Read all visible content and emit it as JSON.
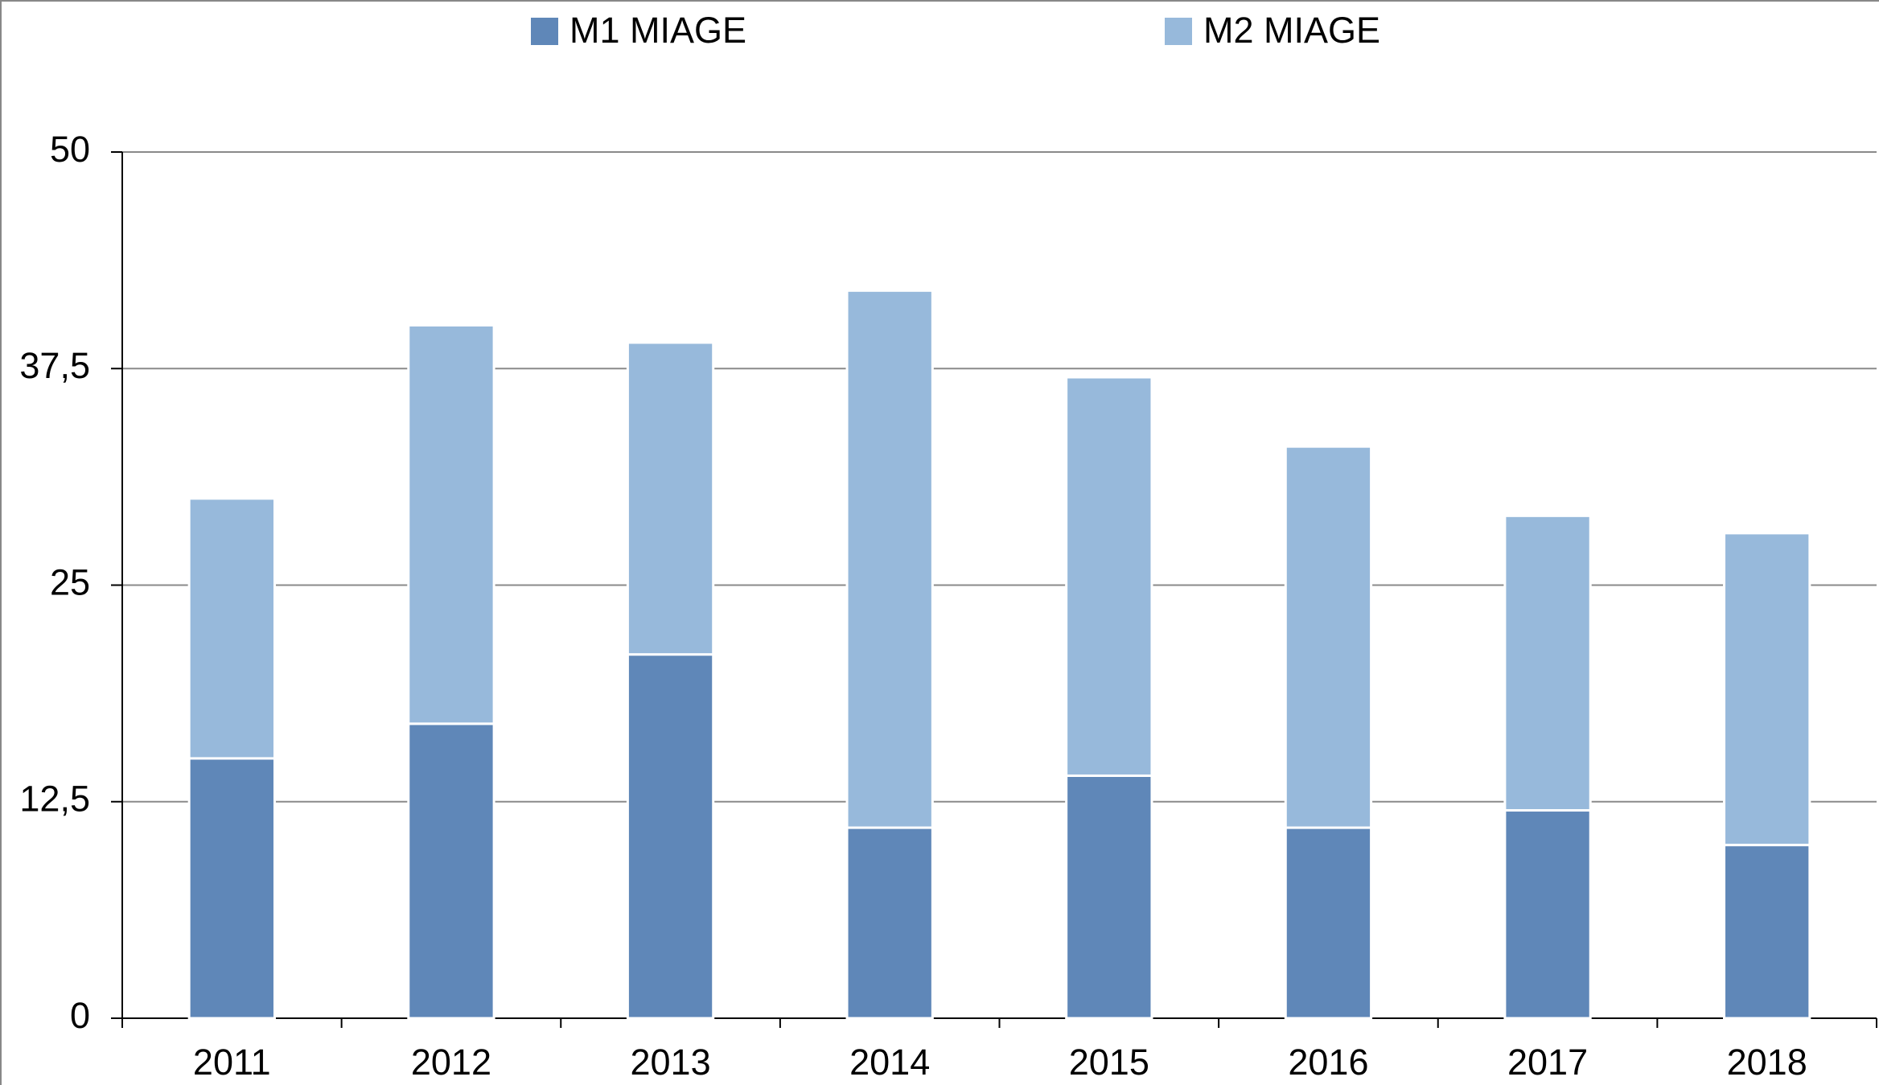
{
  "chart_data": {
    "type": "stacked_bar",
    "categories": [
      "2011",
      "2012",
      "2013",
      "2014",
      "2015",
      "2016",
      "2017",
      "2018"
    ],
    "series": [
      {
        "name": "M1 MIAGE",
        "color": "#5f87b8",
        "values": [
          15,
          17,
          21,
          11,
          14,
          11,
          12,
          10
        ]
      },
      {
        "name": "M2 MIAGE",
        "color": "#97b9db",
        "values": [
          15,
          23,
          18,
          31,
          23,
          22,
          17,
          18
        ]
      }
    ],
    "ylim": [
      0,
      50
    ],
    "yticks": [
      0,
      {
        "value": 12.5,
        "label": "12,5"
      },
      25,
      {
        "value": 37.5,
        "label": "37,5"
      },
      50
    ],
    "grid": true,
    "legend": "top"
  }
}
